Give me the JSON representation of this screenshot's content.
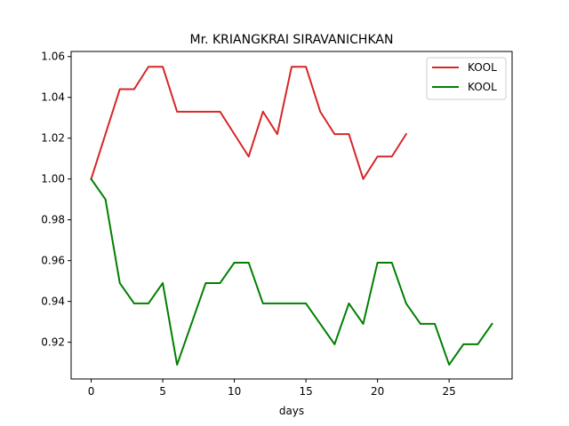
{
  "chart_data": {
    "type": "line",
    "title": "Mr. KRIANGKRAI SIRAVANICHKAN",
    "xlabel": "days",
    "ylabel": "",
    "xlim": [
      -1.4,
      29.4
    ],
    "ylim": [
      0.902,
      1.0625
    ],
    "xticks": [
      0,
      5,
      10,
      15,
      20,
      25
    ],
    "yticks": [
      0.92,
      0.94,
      0.96,
      0.98,
      1.0,
      1.02,
      1.04,
      1.06
    ],
    "ytick_labels": [
      "0.92",
      "0.94",
      "0.96",
      "0.98",
      "1.00",
      "1.02",
      "1.04",
      "1.06"
    ],
    "legend_position": "top-right",
    "series": [
      {
        "name": "KOOL",
        "color": "#d62728",
        "x": [
          0,
          1,
          2,
          3,
          4,
          5,
          6,
          7,
          8,
          9,
          10,
          11,
          12,
          13,
          14,
          15,
          16,
          17,
          18,
          19,
          20,
          21,
          22
        ],
        "values": [
          1.0,
          1.022,
          1.044,
          1.044,
          1.055,
          1.055,
          1.033,
          1.033,
          1.033,
          1.033,
          1.022,
          1.011,
          1.033,
          1.022,
          1.055,
          1.055,
          1.033,
          1.022,
          1.022,
          1.0,
          1.011,
          1.011,
          1.022
        ]
      },
      {
        "name": "KOOL",
        "color": "#008000",
        "x": [
          0,
          1,
          2,
          3,
          4,
          5,
          6,
          7,
          8,
          9,
          10,
          11,
          12,
          13,
          14,
          15,
          16,
          17,
          18,
          19,
          20,
          21,
          22,
          23,
          24,
          25,
          26,
          27,
          28
        ],
        "values": [
          1.0,
          0.99,
          0.949,
          0.939,
          0.939,
          0.949,
          0.909,
          0.929,
          0.949,
          0.949,
          0.959,
          0.959,
          0.939,
          0.939,
          0.939,
          0.939,
          0.929,
          0.919,
          0.939,
          0.929,
          0.959,
          0.959,
          0.939,
          0.929,
          0.929,
          0.909,
          0.919,
          0.919,
          0.929
        ]
      }
    ]
  }
}
